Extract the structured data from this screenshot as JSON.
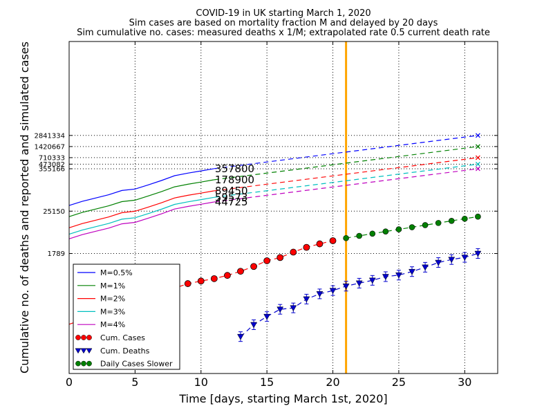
{
  "chart_data": {
    "type": "line",
    "title_lines": [
      "COVID-19 in UK starting March 1, 2020",
      "Sim cases are based on mortality fraction M and delayed by 20 days",
      "Sim cumulative no. cases: measured deaths x 1/M; extrapolated rate 0.5 current death rate"
    ],
    "xlabel": "Time [days, starting March 1st, 2020]",
    "ylabel": "Cumulative no. of deaths and reported and simulated cases",
    "xlim": [
      0,
      32.5
    ],
    "ylim": [
      1,
      1000000000
    ],
    "y_scale": "log",
    "grid": true,
    "x_ticks": [
      0,
      5,
      10,
      15,
      20,
      25,
      30
    ],
    "x_tick_labels": [
      "0",
      "5",
      "10",
      "15",
      "20",
      "25",
      "30"
    ],
    "y_ticks": [
      1789,
      25150,
      355166,
      473082,
      710333,
      1420667,
      2841334
    ],
    "y_tick_labels": [
      "1789",
      "25150",
      "355166",
      "473082",
      "710333",
      "1420667",
      "2841334"
    ],
    "vertical_line": {
      "x": 21,
      "color": "#ffa500"
    },
    "legend_position": "lower-left",
    "series": [
      {
        "name": "M=0.5%",
        "color": "#0000ff",
        "x": [
          0,
          1,
          2,
          3,
          4,
          5,
          6,
          7,
          8,
          9,
          10,
          11
        ],
        "y": [
          35774,
          46495,
          57200,
          70017,
          91480,
          100000,
          130000,
          170000,
          230000,
          270000,
          310000,
          357800
        ],
        "extrap_x": [
          11,
          31
        ],
        "extrap_y": [
          357800,
          2841334
        ],
        "end_marker_y": 2841334,
        "end_label": "357800"
      },
      {
        "name": "M=1%",
        "color": "#008000",
        "x": [
          0,
          1,
          2,
          3,
          4,
          5,
          6,
          7,
          8,
          9,
          10,
          11
        ],
        "y": [
          17885,
          23247,
          28600,
          35008,
          45740,
          50000,
          65000,
          85000,
          115000,
          135000,
          155000,
          178900
        ],
        "extrap_x": [
          11,
          31
        ],
        "extrap_y": [
          178900,
          1420667
        ],
        "end_marker_y": 1420667,
        "end_label": "178900"
      },
      {
        "name": "M=2%",
        "color": "#ff0000",
        "x": [
          0,
          1,
          2,
          3,
          4,
          5,
          6,
          7,
          8,
          9,
          10,
          11
        ],
        "y": [
          8943,
          11624,
          14300,
          17504,
          22870,
          25000,
          32500,
          42500,
          57500,
          67500,
          77500,
          89450
        ],
        "extrap_x": [
          11,
          31
        ],
        "extrap_y": [
          89450,
          710333
        ],
        "end_marker_y": 710333,
        "end_label": "89450"
      },
      {
        "name": "M=3%",
        "color": "#00bfbf",
        "x": [
          0,
          1,
          2,
          3,
          4,
          5,
          6,
          7,
          8,
          9,
          10,
          11
        ],
        "y": [
          5962,
          7749,
          9533,
          11670,
          15247,
          16667,
          21667,
          28333,
          38333,
          45000,
          51667,
          59573
        ],
        "extrap_x": [
          11,
          31
        ],
        "extrap_y": [
          59573,
          473082
        ],
        "end_marker_y": 473082,
        "end_label": "59573"
      },
      {
        "name": "M=4%",
        "color": "#bf00bf",
        "x": [
          0,
          1,
          2,
          3,
          4,
          5,
          6,
          7,
          8,
          9,
          10,
          11
        ],
        "y": [
          4472,
          5812,
          7150,
          8752,
          11435,
          12500,
          16250,
          21250,
          28750,
          33750,
          38750,
          44725
        ],
        "extrap_x": [
          11,
          31
        ],
        "extrap_y": [
          44725,
          355166
        ],
        "end_marker_y": 355166,
        "end_label": "44725"
      }
    ],
    "cum_cases": {
      "name": "Cum. Cases",
      "color": "#ff0000",
      "x": [
        8,
        9,
        10,
        11,
        12,
        13,
        14,
        15,
        16,
        17,
        18,
        19,
        20
      ],
      "y": [
        206,
        273,
        321,
        373,
        456,
        590,
        798,
        1140,
        1391,
        1950,
        2626,
        3269,
        3983
      ]
    },
    "cum_deaths": {
      "name": "Cum. Deaths",
      "color": "#0000cd",
      "x": [
        13,
        14,
        15,
        16,
        17,
        18,
        19,
        20,
        21,
        22,
        23,
        24,
        25,
        26,
        27,
        28,
        29,
        30,
        31
      ],
      "y": [
        10,
        21,
        35,
        55,
        60,
        104,
        144,
        177,
        233,
        281,
        335,
        422,
        465,
        578,
        759,
        1019,
        1228,
        1408,
        1789
      ]
    },
    "daily_cases_slower": {
      "name": "Daily Cases Slower",
      "color": "#008000",
      "x": [
        21,
        22,
        23,
        24,
        25,
        26,
        27,
        28,
        29,
        30,
        31
      ],
      "y": [
        4683,
        5383,
        6183,
        7083,
        8083,
        9233,
        10533,
        12033,
        13733,
        15683,
        17883
      ]
    },
    "legend_entries": [
      "M=0.5%",
      "M=1%",
      "M=2%",
      "M=3%",
      "M=4%",
      "Cum. Cases",
      "Cum. Deaths",
      "Daily Cases Slower"
    ]
  }
}
